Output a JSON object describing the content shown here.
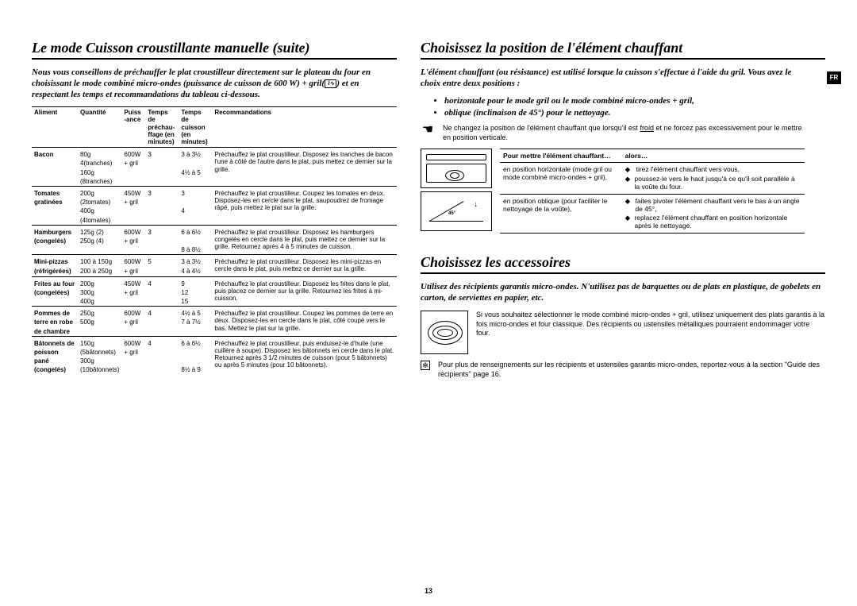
{
  "lang_tab": "FR",
  "page_number": "13",
  "left": {
    "title": "Le mode Cuisson croustillante manuelle (suite)",
    "intro": "Nous vous conseillons de préchauffer le plat croustilleur directement sur le plateau du four en choisissant le mode combiné micro-ondes (puissance de cuisson de 600 W) + gril( ⌧ ) et en respectant les temps et recommandations du tableau ci-dessous.",
    "headers": {
      "c0": "Aliment",
      "c1": "Quantité",
      "c2": "Puiss\n-ance",
      "c3": "Temps de préchau-\nffage (en minutes)",
      "c4": "Temps de cuisson (en minutes)",
      "c5": "Recommandations"
    },
    "rows": [
      {
        "food": [
          "Bacon",
          ""
        ],
        "qty": [
          "80g",
          "4(tranches)",
          "160g",
          "(8tranches)"
        ],
        "pw": [
          "600W",
          "+ gril"
        ],
        "pre": [
          "3",
          ""
        ],
        "cook": [
          "3 à 3½",
          "",
          "4½ à 5"
        ],
        "rec": "Préchauffez le plat croustilleur. Disposez les tranches de bacon l'une à côté de l'autre dans le plat, puis mettez ce dernier sur la grille."
      },
      {
        "food": [
          "Tomates",
          "gratinées"
        ],
        "qty": [
          "200g",
          "(2tomates)",
          "400g",
          "(4tomates)"
        ],
        "pw": [
          "450W",
          "+ gril"
        ],
        "pre": [
          "3",
          ""
        ],
        "cook": [
          "3",
          "",
          "4"
        ],
        "rec": "Préchauffez le plat croustilleur. Coupez les tomates en deux. Disposez-les en cercle dans le plat, saupoudrez de fromage râpé, puis mettez le plat sur la grille."
      },
      {
        "food": [
          "Hamburgers",
          "(congelés)"
        ],
        "qty": [
          "125g (2)",
          "250g (4)"
        ],
        "pw": [
          "600W",
          "+ gril"
        ],
        "pre": [
          "3",
          ""
        ],
        "cook": [
          "6 à 6½",
          "",
          "8 à 8½"
        ],
        "rec": "Préchauffez le plat croustilleur. Disposez les hamburgers congelés en cercle dans le plat, puis mettez ce dernier sur la grille. Retournez après 4 à 5 minutes de cuisson."
      },
      {
        "food": [
          "Mini-pizzas",
          "(réfrigérées)"
        ],
        "qty": [
          "100 à 150g",
          "200 à 250g"
        ],
        "pw": [
          "600W",
          "+ gril"
        ],
        "pre": [
          "5",
          ""
        ],
        "cook": [
          "3 à 3½",
          "4 à 4½"
        ],
        "rec": "Préchauffez le plat croustilleur. Disposez les mini-pizzas en cercle dans le plat, puis mettez ce dernier sur la grille."
      },
      {
        "food": [
          "Frites au four",
          "(congelées)"
        ],
        "qty": [
          "200g",
          "300g",
          "400g"
        ],
        "pw": [
          "450W",
          "+ gril"
        ],
        "pre": [
          "4",
          ""
        ],
        "cook": [
          "9",
          "12",
          "15"
        ],
        "rec": "Préchauffez le plat croustilleur. Disposez les frites dans le plat, puis placez ce dernier sur la grille. Retournez les frites à mi-cuisson."
      },
      {
        "food": [
          "Pommes de",
          "terre en robe",
          "de chambre"
        ],
        "qty": [
          "250g",
          "500g"
        ],
        "pw": [
          "600W",
          "+ gril"
        ],
        "pre": [
          "4",
          ""
        ],
        "cook": [
          "4½ à 5",
          "7 à 7½"
        ],
        "rec": "Préchauffez le plat croustilleur. Coupez les pommes de terre en deux. Disposez-les en cercle dans le plat, côté coupé vers le bas. Mettez le plat sur la grille."
      },
      {
        "food": [
          "Bâtonnets de",
          "poisson",
          "pané",
          "(congelés)"
        ],
        "qty": [
          "150g",
          "(5bâtonnets)",
          "300g",
          "(10bâtonnets)"
        ],
        "pw": [
          "600W",
          "+ gril"
        ],
        "pre": [
          "4",
          ""
        ],
        "cook": [
          "6 à 6½",
          "",
          "",
          "8½ à 9"
        ],
        "rec": "Préchauffez le plat croustilleur, puis enduisez-le d'huile (une cuillère à soupe). Disposez les bâtonnets en cercle dans le plat. Retournez après 3 1/2 minutes de cuisson (pour 5 bâtonnets) ou après 5 minutes (pour 10 bâtonnets)."
      }
    ]
  },
  "right": {
    "sec1_title": "Choisissez la position de l'élément chauffant",
    "sec1_intro": "L'élément chauffant (ou résistance) est utilisé lorsque la cuisson s'effectue à l'aide du gril. Vous avez le choix entre deux positions :",
    "sec1_b1": "horizontale pour le mode gril ou le mode combiné micro-ondes + gril,",
    "sec1_b2": "oblique (inclinaison de 45°) pour le nettoyage.",
    "sec1_warn": "Ne changez la position de l'élément chauffant que lorsqu'il est froid et ne forcez pas excessivement pour le mettre en position verticale.",
    "sec1_warn_underline": "froid",
    "pos_th0": "Pour mettre l'élément chauffant…",
    "pos_th1": "alors…",
    "pos_r0_a": "en position horizontale (mode gril ou mode combiné micro-ondes + gril),",
    "pos_r0_b1": "tirez l'élément chauffant vers vous,",
    "pos_r0_b2": "poussez-le vers le haut jusqu'à ce qu'il soit parallèle à la voûte du four.",
    "pos_r1_a": "en position oblique (pour faciliter le nettoyage de la voûte),",
    "pos_r1_b1": "faites pivoter l'élément chauffant vers le bas à un angle de 45°,",
    "pos_r1_b2": "replacez l'élément chauffant en position horizontale après le nettoyage.",
    "illus_45": "45°",
    "sec2_title": "Choisissez les accessoires",
    "sec2_intro": "Utilisez des récipients garantis micro-ondes. N'utilisez pas de barquettes ou de plats en plastique, de gobelets en carton, de serviettes en papier, etc.",
    "sec2_body": "Si vous souhaitez sélectionner le mode combiné micro-ondes + gril, utilisez uniquement des plats garantis à la fois micro-ondes et four classique. Des récipients ou ustensiles métalliques pourraient endommager votre four.",
    "sec2_note": "Pour plus de renseignements sur les récipients et ustensiles garantis micro-ondes, reportez-vous à la section \"Guide des récipients\" page 16."
  }
}
